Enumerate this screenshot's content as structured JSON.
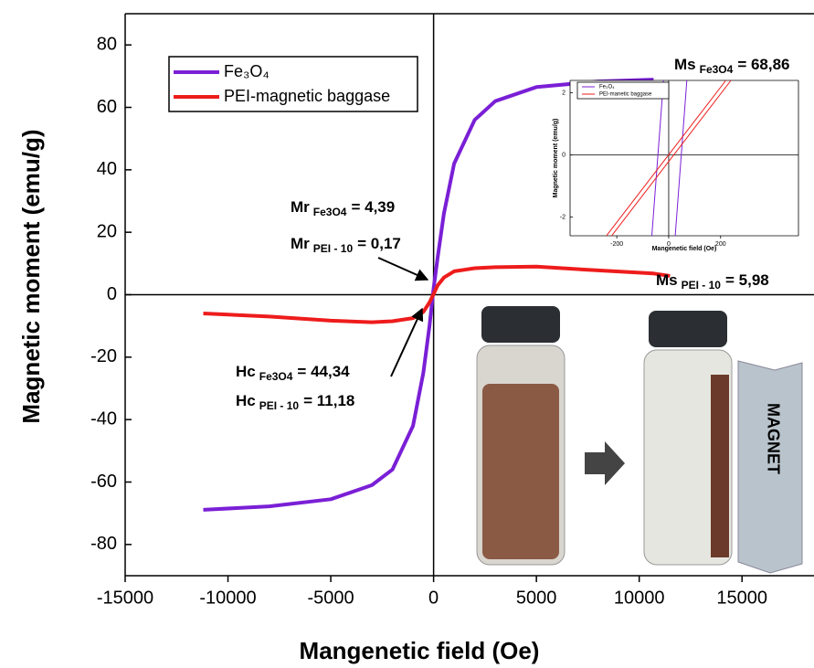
{
  "chart_data": [
    {
      "type": "line",
      "xlabel": "Mangenetic field (Oe)",
      "ylabel": "Magnetic moment (emu/g)",
      "x": [
        -11200,
        -8000,
        -5000,
        -3000,
        -2000,
        -1000,
        -500,
        -200,
        0,
        200,
        500,
        1000,
        2000,
        3000,
        5000,
        8000,
        10700,
        11500
      ],
      "series": [
        {
          "name": "Fe₃O₄",
          "color": "#7a1fd6",
          "values": [
            -68.9,
            -67.8,
            -65.5,
            -61,
            -56,
            -42,
            -25,
            -10,
            2,
            12,
            26,
            42,
            56,
            62,
            66.5,
            68.3,
            68.9,
            null
          ]
        },
        {
          "name": "PEI-magnetic baggase",
          "color": "#ee1c1c",
          "values": [
            -6,
            -7,
            -8.3,
            -8.8,
            -8.5,
            -7.5,
            -5.5,
            -2.5,
            0.2,
            3,
            5.5,
            7.5,
            8.5,
            8.8,
            9,
            7.8,
            6.8,
            6
          ]
        }
      ],
      "xlim": [
        -15000,
        18500
      ],
      "xticks": [
        -15000,
        -10000,
        -5000,
        0,
        5000,
        10000,
        15000
      ],
      "ylim": [
        -90,
        90
      ],
      "yticks": [
        -80,
        -60,
        -40,
        -20,
        0,
        20,
        40,
        60,
        80
      ],
      "annotations": [
        {
          "main": "Ms",
          "sub": "Fe3O4",
          "rest": "= 68,86"
        },
        {
          "main": "Mr",
          "sub": "Fe3O4",
          "rest": "= 4,39"
        },
        {
          "main": "Mr",
          "sub": "PEI - 10",
          "rest": "= 0,17"
        },
        {
          "main": "Ms",
          "sub": "PEI - 10",
          "rest": "= 5,98"
        },
        {
          "main": "Hc",
          "sub": "Fe3O4",
          "rest": "= 44,34"
        },
        {
          "main": "Hc",
          "sub": "PEI - 10",
          "rest": "= 11,18"
        }
      ],
      "image_text": "MAGNET"
    },
    {
      "type": "line",
      "xlabel": "Mangenetic field (Oe)",
      "ylabel": "Magnetic moment (emu/g)",
      "series": [
        {
          "name": "Fe₃O₄",
          "color": "#7a1fd6",
          "x": [
            -65,
            -20,
            null,
            25,
            70
          ],
          "values": [
            -2.6,
            2.4,
            null,
            -2.6,
            2.4
          ]
        },
        {
          "name": "PEI-manetic baggase",
          "color": "#ee1c1c",
          "x": [
            -240,
            220,
            null,
            -220,
            240
          ],
          "values": [
            -2.6,
            2.4,
            null,
            -2.6,
            2.4
          ]
        }
      ],
      "xlim": [
        -380,
        500
      ],
      "xticks": [
        -200,
        0,
        200
      ],
      "ylim": [
        -2.6,
        2.4
      ],
      "yticks": [
        -2,
        0,
        2
      ]
    }
  ]
}
